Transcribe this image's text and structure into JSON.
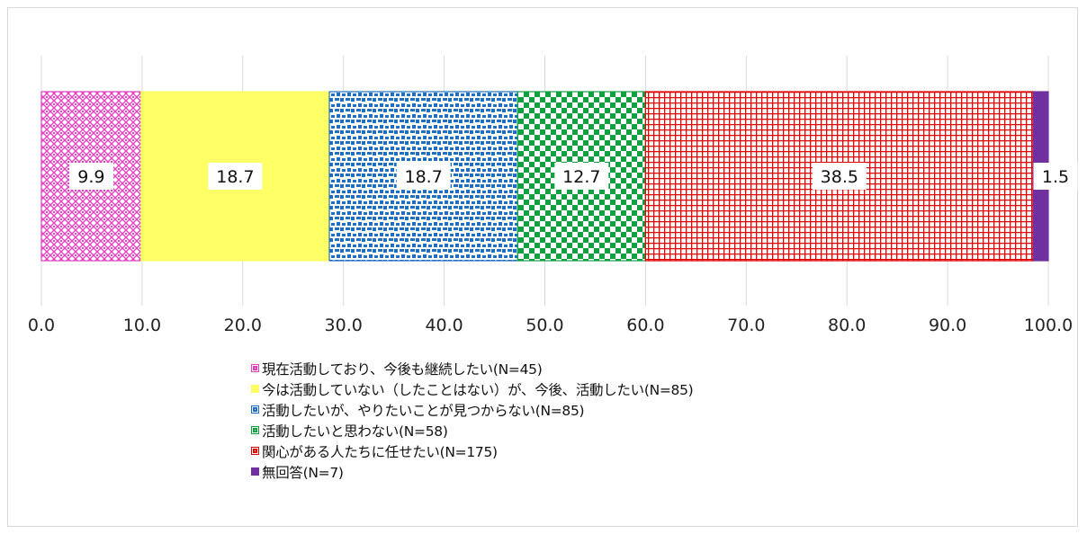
{
  "chart_data": {
    "type": "bar",
    "orientation": "horizontal",
    "stacked": true,
    "x_ticks": [
      "0.0",
      "10.0",
      "20.0",
      "30.0",
      "40.0",
      "50.0",
      "60.0",
      "70.0",
      "80.0",
      "90.0",
      "100.0"
    ],
    "xlim": [
      0,
      100
    ],
    "grid": true,
    "legend_position": "bottom",
    "series": [
      {
        "name": "現在活動しており、今後も継続したい(N=45)",
        "value": 9.9,
        "label": "9.9",
        "color": "#e040c0",
        "pattern": "diamond"
      },
      {
        "name": "今は活動していない（したことはない）が、今後、活動したい(N=85)",
        "value": 18.7,
        "label": "18.7",
        "color": "#ffff66",
        "pattern": "solid"
      },
      {
        "name": "活動したいが、やりたいことが見つからない(N=85)",
        "value": 18.7,
        "label": "18.7",
        "color": "#1f6fc0",
        "pattern": "dots"
      },
      {
        "name": "活動したいと思わない(N=58)",
        "value": 12.7,
        "label": "12.7",
        "color": "#10a040",
        "pattern": "checker"
      },
      {
        "name": "関心がある人たちに任せたい(N=175)",
        "value": 38.5,
        "label": "38.5",
        "color": "#e00000",
        "pattern": "grid"
      },
      {
        "name": "無回答(N=7)",
        "value": 1.5,
        "label": "1.5",
        "color": "#7030a0",
        "pattern": "solid"
      }
    ]
  }
}
